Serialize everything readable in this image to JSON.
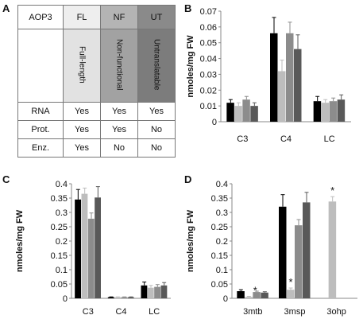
{
  "panels": {
    "A": "A",
    "B": "B",
    "C": "C",
    "D": "D"
  },
  "table": {
    "corner": "AOP3",
    "columns": [
      "FL",
      "NF",
      "UT"
    ],
    "descriptions": [
      "Full-length",
      "Non-functional",
      "Untranslatable"
    ],
    "header_colors": [
      "#eeeeee",
      "#b4b4b4",
      "#8a8a8a"
    ],
    "desc_colors": [
      "#e2e2e2",
      "#a2a2a2",
      "#7c7c7c"
    ],
    "rows": [
      {
        "label": "RNA",
        "values": [
          "Yes",
          "Yes",
          "Yes"
        ]
      },
      {
        "label": "Prot.",
        "values": [
          "Yes",
          "Yes",
          "No"
        ]
      },
      {
        "label": "Enz.",
        "values": [
          "Yes",
          "No",
          "No"
        ]
      }
    ]
  },
  "series_colors": [
    "#000000",
    "#bdbdbd",
    "#8c8c8c",
    "#595959"
  ],
  "chart_data": [
    {
      "panel": "B",
      "type": "bar",
      "ylabel": "nmoles/mg FW",
      "categories": [
        "C3",
        "C4",
        "LC"
      ],
      "ylim": [
        0,
        0.07
      ],
      "yticks": [
        "0",
        "0.01",
        "0.02",
        "0.03",
        "0.04",
        "0.05",
        "0.06",
        "0.07"
      ],
      "grid": false,
      "series": [
        {
          "values": [
            0.012,
            0.056,
            0.013
          ],
          "errors": [
            0.002,
            0.01,
            0.003
          ]
        },
        {
          "values": [
            0.01,
            0.032,
            0.012
          ],
          "errors": [
            0.002,
            0.007,
            0.002
          ]
        },
        {
          "values": [
            0.014,
            0.056,
            0.013
          ],
          "errors": [
            0.002,
            0.007,
            0.002
          ]
        },
        {
          "values": [
            0.01,
            0.046,
            0.014
          ],
          "errors": [
            0.002,
            0.009,
            0.003
          ]
        }
      ],
      "annotations": []
    },
    {
      "panel": "C",
      "type": "bar",
      "ylabel": "nmoles/mg FW",
      "categories": [
        "C3",
        "C4",
        "LC"
      ],
      "ylim": [
        0,
        0.4
      ],
      "yticks": [
        "0",
        "0.05",
        "0.1",
        "0.15",
        "0.2",
        "0.25",
        "0.3",
        "0.35",
        "0.4"
      ],
      "grid": false,
      "series": [
        {
          "values": [
            0.345,
            0.004,
            0.045
          ],
          "errors": [
            0.035,
            0.001,
            0.012
          ]
        },
        {
          "values": [
            0.365,
            0.004,
            0.037
          ],
          "errors": [
            0.02,
            0.001,
            0.008
          ]
        },
        {
          "values": [
            0.278,
            0.004,
            0.04
          ],
          "errors": [
            0.02,
            0.001,
            0.008
          ]
        },
        {
          "values": [
            0.352,
            0.004,
            0.045
          ],
          "errors": [
            0.038,
            0.001,
            0.01
          ]
        }
      ],
      "annotations": []
    },
    {
      "panel": "D",
      "type": "bar",
      "ylabel": "nmoles/mg FW",
      "categories": [
        "3mtb",
        "3msp",
        "3ohp"
      ],
      "ylim": [
        0,
        0.4
      ],
      "yticks": [
        "0",
        "0.05",
        "0.1",
        "0.15",
        "0.2",
        "0.25",
        "0.3",
        "0.35",
        "0.4"
      ],
      "grid": false,
      "series": [
        {
          "values": [
            0.025,
            0.32,
            0
          ],
          "errors": [
            0.005,
            0.042,
            0
          ]
        },
        {
          "values": [
            0.005,
            0.03,
            0.338
          ],
          "errors": [
            0.002,
            0.006,
            0.017
          ]
        },
        {
          "values": [
            0.022,
            0.255,
            0
          ],
          "errors": [
            0.003,
            0.02,
            0
          ]
        },
        {
          "values": [
            0.02,
            0.335,
            0
          ],
          "errors": [
            0.003,
            0.035,
            0
          ]
        }
      ],
      "annotations": [
        {
          "category": 0,
          "series": 1,
          "text": "*"
        },
        {
          "category": 1,
          "series": 1,
          "text": "*"
        },
        {
          "category": 2,
          "series": 1,
          "text": "*"
        }
      ]
    }
  ]
}
